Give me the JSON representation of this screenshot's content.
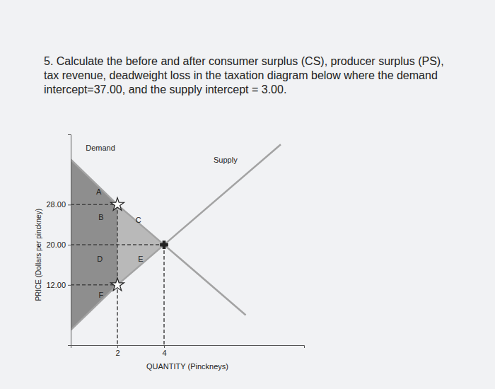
{
  "chart_data": {
    "type": "line",
    "title": "5. Calculate the before and after consumer surplus (CS), producer surplus (PS), tax revenue, deadweight loss in the taxation diagram below where the demand intercept=37.00, and the supply intercept = 3.00.",
    "x_label": "QUANTITY (Pinckneys)",
    "y_label": "PRICE (Dollars per pinckney)",
    "xlim": [
      0,
      10
    ],
    "ylim": [
      0,
      42
    ],
    "xticks": [
      2,
      4
    ],
    "yticks": [
      {
        "value": 12,
        "label": "12.00"
      },
      {
        "value": 20,
        "label": "20.00"
      },
      {
        "value": 28,
        "label": "28.00"
      }
    ],
    "grid": false,
    "series": [
      {
        "name": "Demand",
        "color": "#a3a3a3",
        "x": [
          0,
          2,
          4,
          7.5
        ],
        "values": [
          37,
          28,
          20,
          6
        ]
      },
      {
        "name": "Supply",
        "color": "#a3a3a3",
        "x": [
          0,
          2,
          4,
          9
        ],
        "values": [
          3,
          12,
          20,
          40
        ]
      }
    ],
    "shading": [
      {
        "x": [
          0,
          2
        ],
        "upper": [
          37,
          28
        ],
        "lower": [
          3,
          12
        ],
        "color": "#8e8e8e"
      },
      {
        "x": [
          2,
          4
        ],
        "upper": [
          28,
          20
        ],
        "lower": [
          12,
          20
        ],
        "color": "#b9b9b9"
      }
    ],
    "guides": [
      {
        "x": [
          0,
          2
        ],
        "y": [
          28,
          28
        ]
      },
      {
        "x": [
          0,
          4
        ],
        "y": [
          20,
          20
        ]
      },
      {
        "x": [
          0,
          2
        ],
        "y": [
          12,
          12
        ]
      },
      {
        "x": [
          2,
          2
        ],
        "y": [
          28,
          0
        ]
      },
      {
        "x": [
          4,
          4
        ],
        "y": [
          20,
          0
        ]
      }
    ],
    "points": [
      {
        "x": 2,
        "y": 28,
        "marker": "star"
      },
      {
        "x": 2,
        "y": 12,
        "marker": "star"
      },
      {
        "x": 4,
        "y": 20,
        "marker": "plus"
      }
    ],
    "annotations": [
      {
        "text": "A",
        "x": 1.2,
        "y": 30.5
      },
      {
        "text": "B",
        "x": 1.3,
        "y": 25.4
      },
      {
        "text": "C",
        "x": 2.9,
        "y": 24.8
      },
      {
        "text": "D",
        "x": 1.25,
        "y": 17
      },
      {
        "text": "E",
        "x": 3,
        "y": 17
      },
      {
        "text": "F",
        "x": 1.3,
        "y": 9.9
      }
    ]
  }
}
